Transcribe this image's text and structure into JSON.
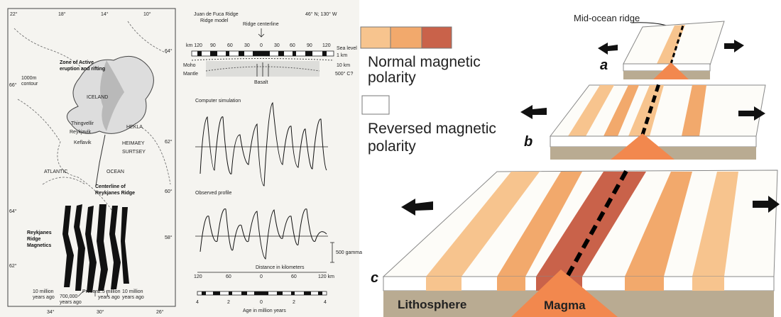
{
  "map": {
    "top_longitudes": [
      "22°",
      "18°",
      "14°",
      "10°"
    ],
    "bottom_longitudes": [
      "34°",
      "30°",
      "26°"
    ],
    "left_latitudes": [
      "66°",
      "64°",
      "62°"
    ],
    "right_latitudes": [
      "64°",
      "62°",
      "60°",
      "58°"
    ],
    "zone_label": [
      "Zone of Active",
      "eruption and rifting"
    ],
    "contour_label": [
      "1000m",
      "contour"
    ],
    "country": "ICELAND",
    "places": [
      "HEKLA",
      "Thingvellir",
      "Reykjavik",
      "Keflavik",
      "HEIMAEY",
      "SURTSEY"
    ],
    "sea_words": [
      "ATLANTIC",
      "OCEAN"
    ],
    "centerline_label": [
      "Centerline of",
      "Reykjanes Ridge"
    ],
    "magnetics_label": [
      "Reykjanes",
      "Ridge",
      "Magnetics"
    ],
    "ages": [
      [
        "10 million",
        "years ago"
      ],
      [
        "700,000",
        "years ago"
      ],
      [
        "Present"
      ],
      [
        "2.5 million",
        "years ago"
      ],
      [
        "10 million",
        "years ago"
      ]
    ]
  },
  "ridge_model": {
    "title": [
      "Juan de Fuca Ridge",
      "Ridge model"
    ],
    "location": "46° N; 130° W",
    "centerline": "Ridge centerline",
    "km_labels": [
      "km 120",
      "90",
      "60",
      "30",
      "0",
      "30",
      "60",
      "90",
      "120"
    ],
    "right_labels": [
      "Sea level",
      "1 km",
      "10 km",
      "500° C?"
    ],
    "left_labels": [
      "Moho",
      "Mantle"
    ],
    "basalt": "Basalt"
  },
  "profiles": {
    "simulation_title": "Computer simulation",
    "observed_title": "Observed profile",
    "scale": "500 gamma",
    "distance_title": "Distance in kilometers",
    "distance_labels": [
      "120",
      "60",
      "0",
      "60",
      "120 km"
    ],
    "age_labels": [
      "4",
      "2",
      "0",
      "2",
      "4"
    ],
    "age_title": "Age in million years"
  },
  "diagram": {
    "ridge_label": "Mid-ocean ridge",
    "normal_legend": [
      "Normal magnetic",
      "polarity"
    ],
    "reversed_legend": [
      "Reversed magnetic",
      "polarity"
    ],
    "stage_letters": [
      "a",
      "b",
      "c"
    ],
    "lithosphere": "Lithosphere",
    "magma": "Magma"
  }
}
